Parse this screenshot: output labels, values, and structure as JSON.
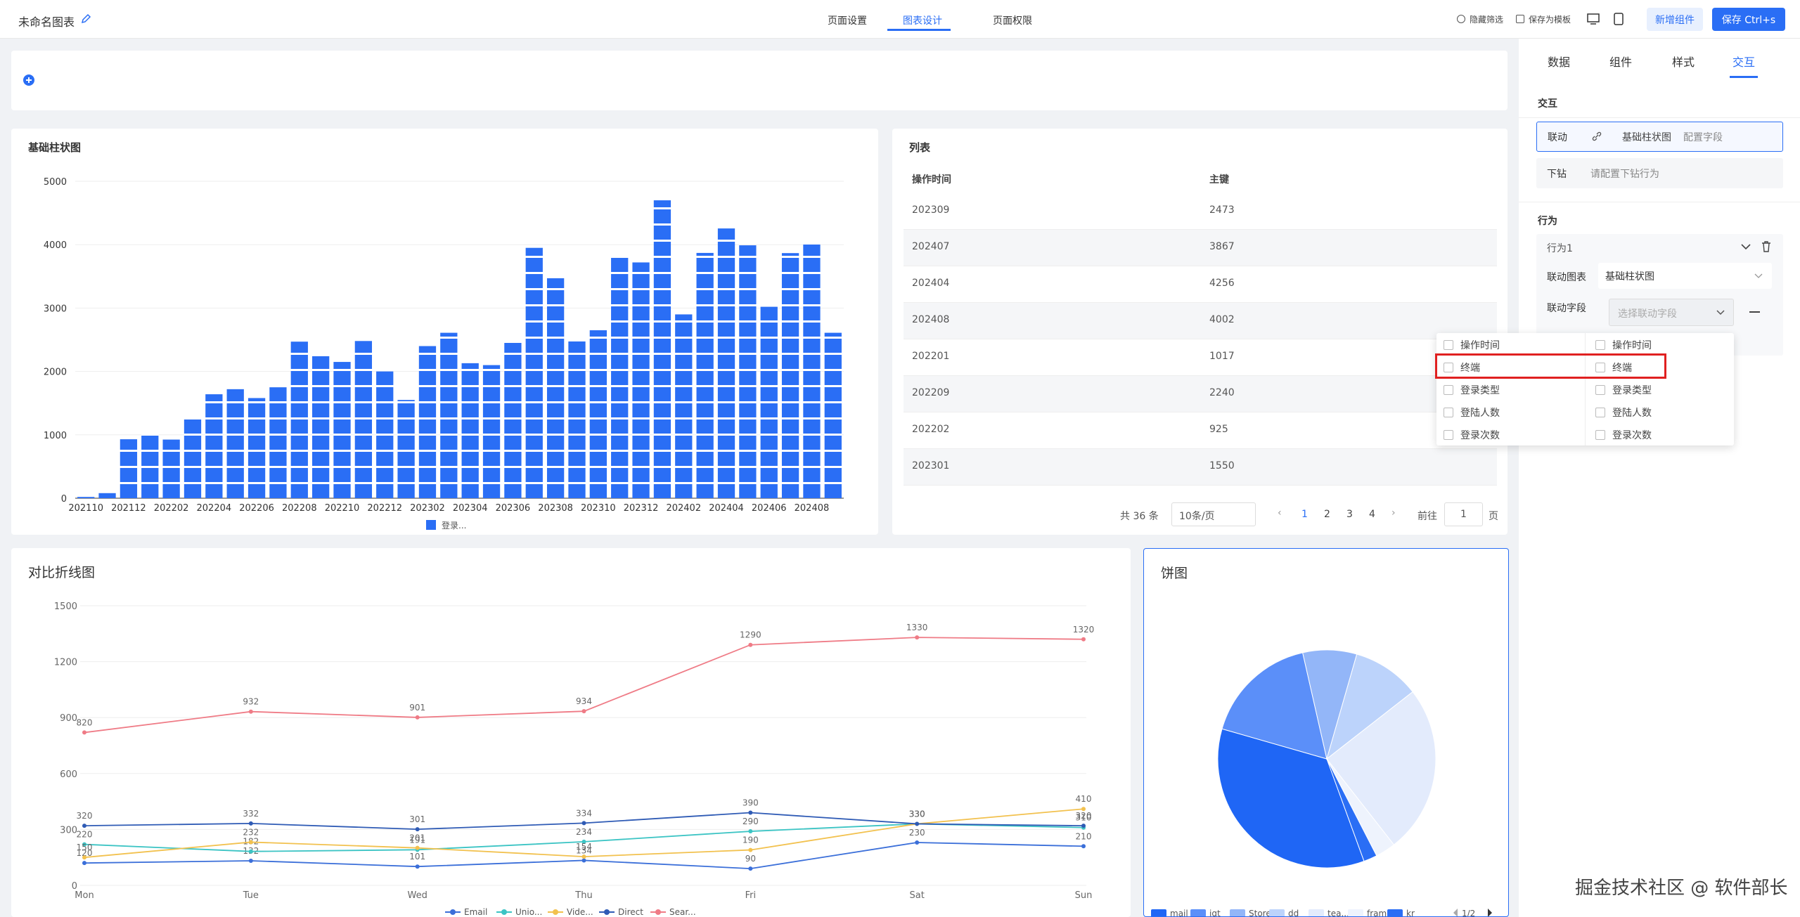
{
  "header": {
    "title": "未命名图表",
    "tabs": [
      "页面设置",
      "图表设计",
      "页面权限"
    ],
    "active_tab": 1,
    "actions": [
      "隐藏筛选",
      "保存为模板"
    ],
    "buttons": [
      "新增组件",
      "保存 Ctrl+s"
    ]
  },
  "chart_data": [
    {
      "type": "bar",
      "title": "基础柱状图",
      "categories": [
        "202110",
        null,
        "202112",
        null,
        "202202",
        null,
        "202204",
        null,
        "202206",
        null,
        "202208",
        null,
        "202210",
        null,
        "202212",
        null,
        "202302",
        null,
        "202304",
        null,
        "202306",
        null,
        "202308",
        null,
        "202310",
        null,
        "202312",
        null,
        "202402",
        null,
        "202404",
        null,
        "202406",
        null,
        "202408",
        null
      ],
      "series": [
        {
          "name": "登录...",
          "color": "#2a6ef5",
          "values": [
            20,
            80,
            930,
            1017,
            925,
            1270,
            1640,
            1720,
            1580,
            1750,
            2470,
            2240,
            2150,
            2480,
            2000,
            1550,
            2400,
            2610,
            2130,
            2100,
            2450,
            3950,
            3470,
            2473,
            2650,
            3800,
            3720,
            4700,
            2900,
            3870,
            4256,
            3990,
            3020,
            3867,
            4002,
            2610
          ]
        }
      ],
      "ylim": [
        0,
        5000
      ],
      "yticks": [
        0,
        1000,
        2000,
        3000,
        4000,
        5000
      ],
      "grid": true
    },
    {
      "type": "line",
      "title": "对比折线图",
      "categories": [
        "Mon",
        "Tue",
        "Wed",
        "Thu",
        "Fri",
        "Sat",
        "Sun"
      ],
      "series": [
        {
          "name": "Email",
          "color": "#3b6fd9",
          "values": [
            120,
            132,
            101,
            134,
            90,
            230,
            210
          ]
        },
        {
          "name": "Unio...",
          "color": "#3cc4c4",
          "values": [
            220,
            182,
            191,
            234,
            290,
            330,
            310
          ]
        },
        {
          "name": "Vide...",
          "color": "#f2c14e",
          "values": [
            150,
            232,
            201,
            154,
            190,
            330,
            410
          ]
        },
        {
          "name": "Direct",
          "color": "#2f5bb5",
          "values": [
            320,
            332,
            301,
            334,
            390,
            330,
            320
          ]
        },
        {
          "name": "Sear...",
          "color": "#ef7b86",
          "values": [
            820,
            932,
            901,
            934,
            1290,
            1330,
            1320
          ]
        }
      ],
      "ylim": [
        0,
        1500
      ],
      "yticks": [
        0,
        300,
        600,
        900,
        1200,
        1500
      ],
      "grid": true,
      "data_labels": true
    },
    {
      "type": "pie",
      "title": "饼图",
      "categories": [
        "mail",
        "iqt",
        "Store...",
        "dd",
        "tea...",
        "frame",
        "kr"
      ],
      "values": [
        35,
        17,
        8,
        10,
        25,
        3,
        2
      ],
      "colors": [
        "#1f66f5",
        "#5b8ff9",
        "#93b6f8",
        "#bcd3fb",
        "#e3ebfc",
        "#eef3fd",
        "#2a6ef5"
      ],
      "legend_page": "1/2"
    }
  ],
  "table": {
    "title": "列表",
    "columns": [
      "操作时间",
      "主键"
    ],
    "rows": [
      [
        "202309",
        2473
      ],
      [
        "202407",
        3867
      ],
      [
        "202404",
        4256
      ],
      [
        "202408",
        4002
      ],
      [
        "202201",
        1017
      ],
      [
        "202209",
        2240
      ],
      [
        "202202",
        925
      ],
      [
        "202301",
        1550
      ]
    ],
    "pagination": {
      "total": "共 36 条",
      "page_size": "10条/页",
      "pages": [
        1,
        2,
        3,
        4
      ],
      "current": 0,
      "goto": "前往",
      "goto_value": "1",
      "unit": "页"
    }
  },
  "panel": {
    "tabs": [
      "数据",
      "组件",
      "样式",
      "交互"
    ],
    "active_tab": 3,
    "interaction": {
      "title": "交互",
      "link_label": "联动",
      "link_chart": "基础柱状图",
      "link_config": "配置字段",
      "drill_label": "下钻",
      "drill_placeholder": "请配置下钻行为"
    },
    "behavior": {
      "title": "行为",
      "name": "行为1",
      "chart_label": "联动图表",
      "chart_value": "基础柱状图",
      "field_label": "联动字段",
      "field_placeholder": "选择联动字段"
    },
    "field_dropdown": {
      "columns": [
        [
          "操作时间",
          "终端",
          "登录类型",
          "登陆人数",
          "登录次数"
        ],
        [
          "操作时间",
          "终端",
          "登录类型",
          "登陆人数",
          "登录次数"
        ]
      ],
      "highlight_row": 1
    }
  },
  "watermark": "掘金技术社区 @ 软件部长"
}
